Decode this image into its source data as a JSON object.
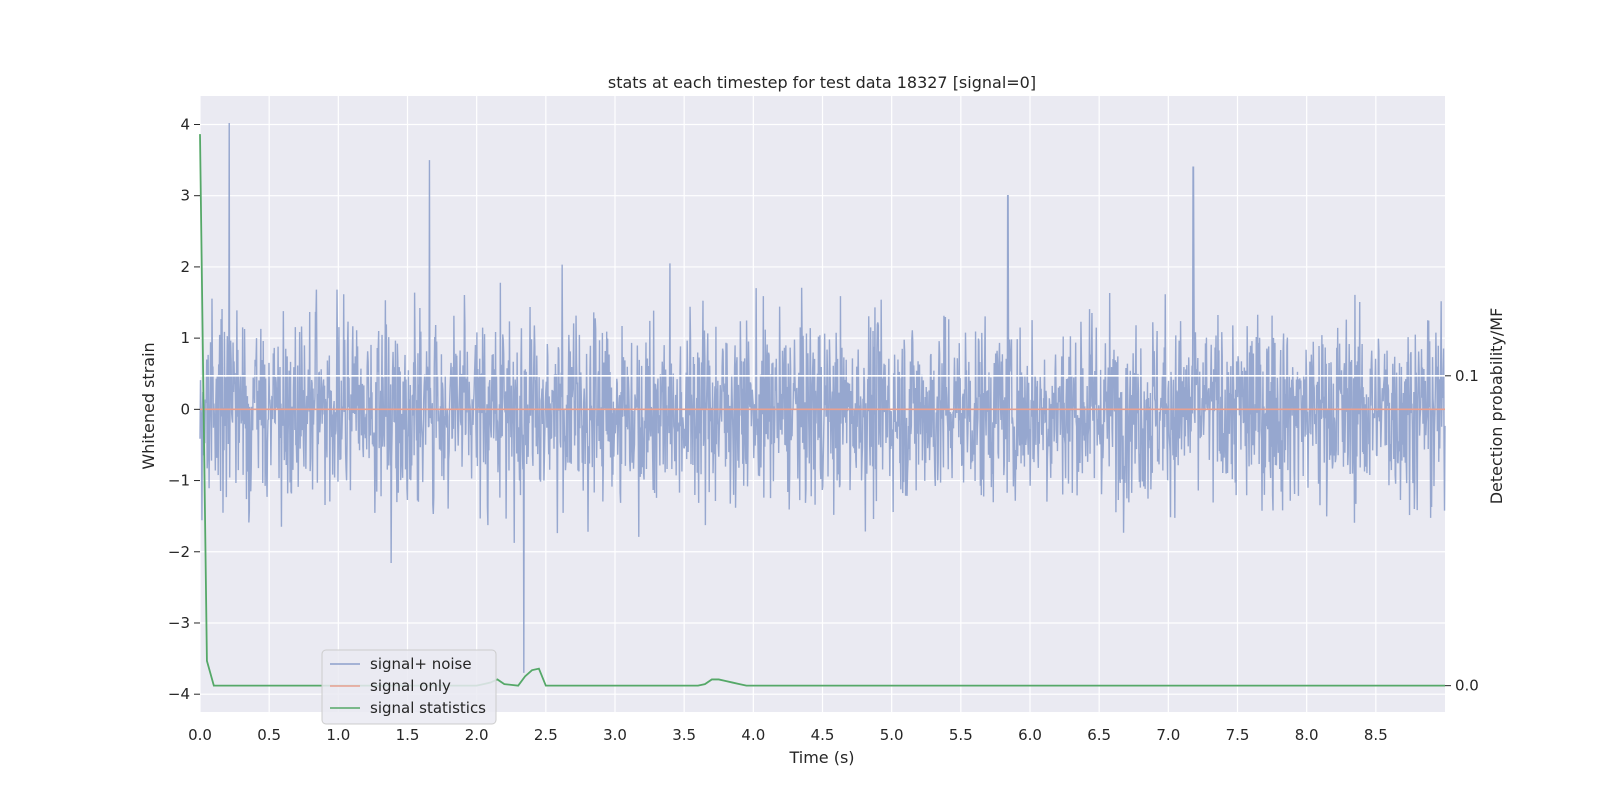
{
  "chart_data": {
    "type": "line",
    "title": "stats at each timestep for test data 18327 [signal=0]",
    "xlabel": "Time (s)",
    "ylabel": "Whitened strain",
    "y2label": "Detection probability/MF",
    "xlim": [
      0.0,
      9.0
    ],
    "ylim": [
      -4.25,
      4.4
    ],
    "y2lim": [
      -0.0085,
      0.1903
    ],
    "x_ticks": [
      "0.0",
      "0.5",
      "1.0",
      "1.5",
      "2.0",
      "2.5",
      "3.0",
      "3.5",
      "4.0",
      "4.5",
      "5.0",
      "5.5",
      "6.0",
      "6.5",
      "7.0",
      "7.5",
      "8.0",
      "8.5"
    ],
    "y_ticks": [
      "4",
      "3",
      "2",
      "1",
      "0",
      "−1",
      "−2",
      "−3",
      "−4"
    ],
    "y2_ticks": [
      "0.1",
      "0.0"
    ],
    "grid": true,
    "legend_position": "lower-left",
    "series": [
      {
        "name": "signal+ noise",
        "color": "#8da0cb",
        "axis": "left",
        "description_peaks": {
          "x": [
            0.21,
            1.66,
            2.34,
            7.18,
            5.84
          ],
          "y": [
            4.02,
            3.5,
            -3.7,
            3.4,
            3.0
          ]
        }
      },
      {
        "name": "signal only",
        "color": "#e8a090",
        "axis": "left",
        "x": [
          0.0,
          9.0
        ],
        "y": [
          0.0,
          0.0
        ]
      },
      {
        "name": "signal statistics",
        "color": "#55a868",
        "axis": "right",
        "x": [
          0.0,
          0.05,
          0.1,
          0.15,
          0.5,
          1.0,
          1.5,
          1.95,
          2.0,
          2.05,
          2.1,
          2.15,
          2.2,
          2.3,
          2.35,
          2.4,
          2.45,
          2.5,
          2.6,
          3.0,
          3.5,
          3.6,
          3.65,
          3.7,
          3.75,
          3.8,
          3.85,
          3.9,
          3.95,
          4.0,
          5.0,
          6.0,
          7.0,
          8.0,
          9.0
        ],
        "y": [
          0.178,
          0.008,
          0.0,
          0.0,
          0.0,
          0.0,
          0.0,
          0.0,
          0.0,
          0.0005,
          0.001,
          0.002,
          0.0005,
          0.0,
          0.003,
          0.005,
          0.0055,
          0.0,
          0.0,
          0.0,
          0.0,
          0.0,
          0.0005,
          0.002,
          0.002,
          0.0015,
          0.001,
          0.0005,
          0.0,
          0.0,
          0.0,
          0.0,
          0.0,
          0.0,
          0.0
        ]
      }
    ]
  }
}
